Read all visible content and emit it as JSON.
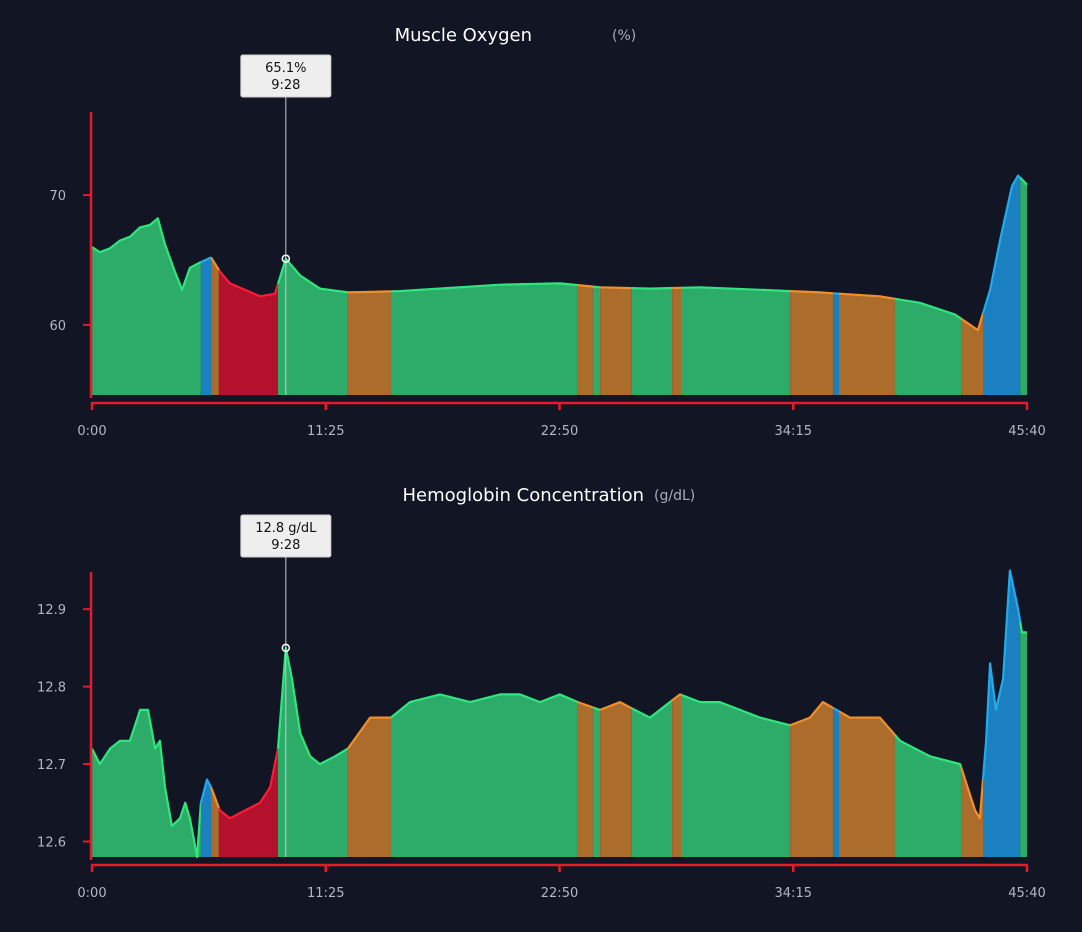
{
  "colors": {
    "background": "#111524",
    "axis": "#e8192c",
    "zones": {
      "green": {
        "fill": "#2cab69",
        "line": "#2fe57e"
      },
      "orange": {
        "fill": "#ab6c2c",
        "line": "#f0902a"
      },
      "red": {
        "fill": "#b3112c",
        "line": "#ff1a3a"
      },
      "blue": {
        "fill": "#1a80bf",
        "line": "#22aaee"
      }
    }
  },
  "chart_data": [
    {
      "type": "area",
      "title": "Muscle Oxygen",
      "unit": "(%)",
      "xlabel": "",
      "ylabel": "",
      "xlim": [
        "0:00",
        "45:40"
      ],
      "ylim": [
        54.6,
        76.4
      ],
      "xticks": [
        "0:00",
        "11:25",
        "22:50",
        "34:15",
        "45:40"
      ],
      "yticks": [
        60,
        70
      ],
      "grid": false,
      "tooltip": {
        "value": "65.1%",
        "time": "9:28",
        "x": "9:28",
        "y": 65.1
      },
      "x": [
        "0:00",
        "0:23",
        "0:53",
        "1:22",
        "1:52",
        "2:20",
        "2:50",
        "3:13",
        "3:34",
        "4:03",
        "4:24",
        "4:47",
        "5:16",
        "5:49",
        "6:15",
        "6:44",
        "7:28",
        "8:13",
        "8:56",
        "9:28",
        "10:10",
        "11:08",
        "12:30",
        "15:02",
        "19:56",
        "22:52",
        "24:49",
        "27:16",
        "29:42",
        "32:38",
        "35:34",
        "38:29",
        "40:26",
        "42:09",
        "43:16",
        "43:52",
        "44:21",
        "44:56",
        "45:14",
        "45:40"
      ],
      "y": [
        66.0,
        65.6,
        65.9,
        66.5,
        66.8,
        67.5,
        67.7,
        68.2,
        66.2,
        64.1,
        62.7,
        64.4,
        64.8,
        65.2,
        64.1,
        63.2,
        62.7,
        62.2,
        62.4,
        65.1,
        63.8,
        62.8,
        62.5,
        62.6,
        63.1,
        63.2,
        62.9,
        62.8,
        62.9,
        62.7,
        62.5,
        62.2,
        61.7,
        60.8,
        59.6,
        62.7,
        66.5,
        70.7,
        71.5,
        70.8
      ]
    },
    {
      "type": "area",
      "title": "Hemoglobin Concentration",
      "unit": "(g/dL)",
      "xlabel": "",
      "ylabel": "",
      "xlim": [
        "0:00",
        "45:40"
      ],
      "ylim": [
        12.58,
        12.948
      ],
      "xticks": [
        "0:00",
        "11:25",
        "22:50",
        "34:15",
        "45:40"
      ],
      "yticks": [
        12.6,
        12.7,
        12.8,
        12.9
      ],
      "grid": false,
      "tooltip": {
        "value": "12.8 g/dL",
        "time": "9:28",
        "x": "9:28",
        "y": 12.85
      },
      "x": [
        "0:00",
        "0:23",
        "0:53",
        "1:22",
        "1:51",
        "2:21",
        "2:44",
        "3:05",
        "3:19",
        "3:34",
        "3:54",
        "4:18",
        "4:33",
        "4:47",
        "5:08",
        "5:19",
        "5:37",
        "5:49",
        "6:15",
        "6:44",
        "7:28",
        "8:12",
        "8:42",
        "9:05",
        "9:28",
        "9:46",
        "10:10",
        "10:39",
        "11:08",
        "11:52",
        "12:30",
        "13:35",
        "14:36",
        "15:32",
        "17:00",
        "18:28",
        "19:56",
        "20:54",
        "21:53",
        "22:51",
        "23:44",
        "24:49",
        "25:47",
        "27:15",
        "28:43",
        "29:42",
        "30:40",
        "31:39",
        "32:38",
        "34:06",
        "35:04",
        "35:42",
        "37:01",
        "38:29",
        "39:28",
        "40:56",
        "42:24",
        "43:08",
        "43:22",
        "43:40",
        "43:52",
        "44:09",
        "44:30",
        "44:50",
        "45:14",
        "45:25",
        "45:40"
      ],
      "y": [
        12.72,
        12.7,
        12.72,
        12.73,
        12.73,
        12.77,
        12.77,
        12.72,
        12.73,
        12.67,
        12.62,
        12.63,
        12.65,
        12.63,
        12.58,
        12.65,
        12.68,
        12.67,
        12.64,
        12.63,
        12.64,
        12.65,
        12.67,
        12.72,
        12.85,
        12.81,
        12.74,
        12.71,
        12.7,
        12.71,
        12.72,
        12.76,
        12.76,
        12.78,
        12.79,
        12.78,
        12.79,
        12.79,
        12.78,
        12.79,
        12.78,
        12.77,
        12.78,
        12.76,
        12.79,
        12.78,
        12.78,
        12.77,
        12.76,
        12.75,
        12.76,
        12.78,
        12.76,
        12.76,
        12.73,
        12.71,
        12.7,
        12.64,
        12.63,
        12.73,
        12.83,
        12.77,
        12.81,
        12.95,
        12.9,
        12.87,
        12.87
      ]
    }
  ],
  "zones": [
    {
      "start": "0:00",
      "zone": "green"
    },
    {
      "start": "5:19",
      "zone": "blue"
    },
    {
      "start": "5:49",
      "zone": "orange"
    },
    {
      "start": "6:12",
      "zone": "red"
    },
    {
      "start": "9:05",
      "zone": "green"
    },
    {
      "start": "12:30",
      "zone": "orange"
    },
    {
      "start": "14:36",
      "zone": "green"
    },
    {
      "start": "23:44",
      "zone": "orange"
    },
    {
      "start": "24:28",
      "zone": "green"
    },
    {
      "start": "24:49",
      "zone": "orange"
    },
    {
      "start": "26:22",
      "zone": "green"
    },
    {
      "start": "28:20",
      "zone": "orange"
    },
    {
      "start": "28:46",
      "zone": "green"
    },
    {
      "start": "34:06",
      "zone": "orange"
    },
    {
      "start": "36:12",
      "zone": "blue"
    },
    {
      "start": "36:29",
      "zone": "orange"
    },
    {
      "start": "39:13",
      "zone": "green"
    },
    {
      "start": "42:27",
      "zone": "orange"
    },
    {
      "start": "43:31",
      "zone": "blue"
    },
    {
      "start": "45:20",
      "zone": "green"
    }
  ]
}
